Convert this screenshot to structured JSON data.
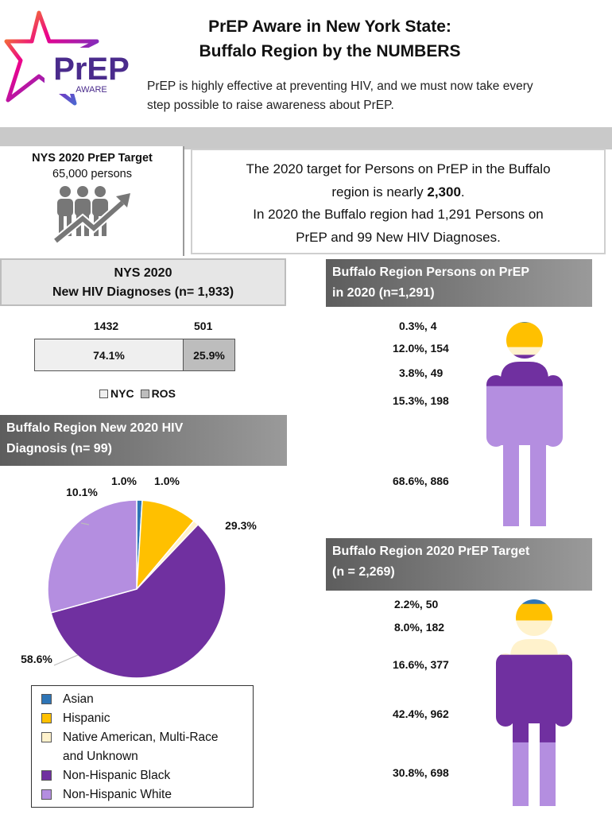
{
  "logo": {
    "text": "PrEP",
    "sub": "AWARE"
  },
  "header": {
    "title_line1": "PrEP Aware in New York State:",
    "title_line2": "Buffalo Region by the NUMBERS",
    "intro_line1": "PrEP is highly effective at preventing HIV, and we must now take every",
    "intro_line2": "step possible to raise awareness about PrEP."
  },
  "nys_target": {
    "title": "NYS 2020 PrEP Target",
    "value": "65,000 persons"
  },
  "info": {
    "line1": "The 2020 target for Persons on PrEP in the Buffalo",
    "line2_pre": "region is nearly ",
    "line2_bold": "2,300",
    "line2_post": ".",
    "line3": "In 2020 the Buffalo region had 1,291 Persons on",
    "line4": "PrEP and 99 New HIV Diagnoses."
  },
  "nys_hiv": {
    "title_line1": "NYS 2020",
    "title_line2": "New HIV Diagnoses (n= 1,933)",
    "nyc_count": "1432",
    "ros_count": "501",
    "nyc_pct": "74.1%",
    "ros_pct": "25.9%",
    "nyc_share": 74.1,
    "legend_nyc": "NYC",
    "legend_ros": "ROS",
    "nyc_color": "#efefef",
    "ros_color": "#bdbdbd"
  },
  "buffalo_dx": {
    "title_line1": "Buffalo Region New 2020 HIV",
    "title_line2": "Diagnosis (n= 99)"
  },
  "chart_data": {
    "type": "pie",
    "title": "Buffalo Region New 2020 HIV Diagnosis (n= 99)",
    "labels": [
      "Asian",
      "Hispanic",
      "Native American, Multi-Race and Unknown",
      "Non-Hispanic Black",
      "Non-Hispanic White"
    ],
    "values": [
      1.0,
      10.1,
      1.0,
      58.6,
      29.3
    ],
    "value_labels": [
      "1.0%",
      "10.1%",
      "1.0%",
      "58.6%",
      "29.3%"
    ],
    "colors": [
      "#2e75b6",
      "#ffc000",
      "#fff2cc",
      "#7030a0",
      "#b48ee0"
    ],
    "legend_placement": "bottom-left"
  },
  "legend": {
    "asian": "Asian",
    "hispanic": "Hispanic",
    "native_l1": "Native American, Multi-Race",
    "native_l2": "and Unknown",
    "black": "Non-Hispanic Black",
    "white": "Non-Hispanic White"
  },
  "persons_on_prep": {
    "title_line1": "Buffalo Region Persons on PrEP",
    "title_line2": "in 2020 (n=1,291)",
    "labels": [
      "0.3%, 4",
      "12.0%, 154",
      "3.8%, 49",
      "15.3%, 198",
      "68.6%, 886"
    ],
    "shares": [
      0.3,
      12.0,
      3.8,
      15.3,
      68.6
    ]
  },
  "prep_target": {
    "title_line1": "Buffalo Region 2020 PrEP Target",
    "title_line2": "(n = 2,269)",
    "labels": [
      "2.2%, 50",
      "8.0%, 182",
      "16.6%, 377",
      "42.4%, 962",
      "30.8%, 698"
    ],
    "shares": [
      2.2,
      8.0,
      16.6,
      42.4,
      30.8
    ]
  }
}
